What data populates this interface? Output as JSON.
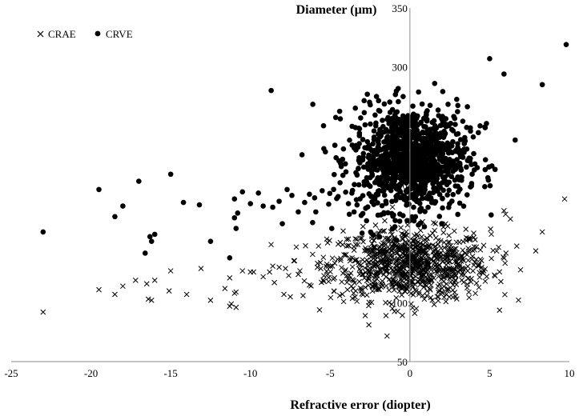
{
  "chart_data": {
    "type": "scatter",
    "title": "",
    "xlabel": "Refractive error (diopter)",
    "ylabel": "Diameter (µm)",
    "xlim": [
      -25,
      10
    ],
    "ylim": [
      50,
      350
    ],
    "xticks": [
      -25,
      -20,
      -15,
      -10,
      -5,
      0,
      5,
      10
    ],
    "yticks": [
      50,
      100,
      150,
      200,
      250,
      300,
      350
    ],
    "grid": false,
    "legend_position": "top-left",
    "series": [
      {
        "name": "CRAE",
        "marker": "x",
        "color": "#000000",
        "x": [
          -23,
          -19.5,
          -18.5,
          -18,
          -17.2,
          -16.5,
          -16.4,
          -16.2,
          -16,
          -15.1,
          -15,
          -14,
          -13.1,
          -12.5,
          -11.6,
          -11.3,
          -11.3,
          -11.2,
          -11,
          -10.9,
          -10.9,
          -10.5,
          -10,
          -9.8,
          -9.2,
          -8.8,
          -8.6,
          -8.5,
          -8.2,
          -7.9,
          -7.8,
          -7.6,
          -7.5,
          -7,
          -6.9,
          -6.7,
          -6.3,
          -6.1,
          -5.8,
          -5.4,
          -5.1,
          -4.8,
          -4.4,
          -4.2,
          -3.8,
          -3.4,
          -3.1,
          -2.8,
          -2.6,
          -2.2,
          -2.1,
          -1.5,
          -1.3,
          -1.1,
          -0.8,
          0.3,
          0.4,
          1.4,
          2.6,
          3.5,
          3.9,
          4.5,
          5.9,
          6,
          6.3,
          6.7,
          8.3,
          9.7
        ],
        "y": [
          92,
          111,
          107,
          114,
          119,
          116,
          103,
          102,
          119,
          110,
          127,
          107,
          129,
          102,
          112,
          121,
          97,
          99,
          108,
          109,
          96,
          127,
          126,
          126,
          122,
          126,
          131,
          117,
          130,
          107,
          129,
          123,
          105,
          124,
          127,
          106,
          115,
          141,
          130,
          118,
          118,
          120,
          106,
          125,
          123,
          110,
          127,
          89,
          121,
          123,
          123,
          89,
          100,
          95,
          135,
          91,
          95,
          102,
          146,
          129,
          137,
          130,
          178,
          175,
          171,
          148,
          160,
          188
        ],
        "cloud": {
          "cx": 0,
          "cy": 132,
          "sx": 2.5,
          "sy": 15,
          "n": 900
        }
      },
      {
        "name": "CRVE",
        "marker": "dot",
        "color": "#000000",
        "x": [
          -23,
          -19.5,
          -18.5,
          -18,
          -17,
          -16.6,
          -16.3,
          -16.2,
          -16,
          -15,
          -14.2,
          -13.2,
          -12.5,
          -11.3,
          -11,
          -11,
          -10.9,
          -10.8,
          -10.5,
          -10,
          -9.5,
          -9.2,
          -8.7,
          -8.6,
          -8.2,
          -8,
          -7.7,
          -7.4,
          -7,
          -6.6,
          -6.3,
          -6.1,
          -5.9,
          -5.5,
          -5.3,
          -4.9,
          -4.5,
          -4.2,
          -3.8,
          -3.5,
          -3.2,
          -3,
          -2.6,
          -2.2,
          4.4,
          4.7,
          4.8,
          5,
          5.9,
          6.6,
          8.3,
          9.8
        ],
        "y": [
          160,
          196,
          173,
          182,
          203,
          142,
          156,
          152,
          158,
          209,
          185,
          183,
          152,
          138,
          188,
          172,
          163,
          176,
          194,
          184,
          193,
          182,
          280,
          181,
          186,
          167,
          196,
          191,
          177,
          185,
          192,
          168,
          177,
          195,
          228,
          163,
          190,
          208,
          175,
          177,
          200,
          159,
          200,
          188,
          250,
          249,
          252,
          307,
          294,
          238,
          285,
          319
        ],
        "cloud": {
          "cx": 0,
          "cy": 222,
          "sx": 1.8,
          "sy": 22,
          "n": 1100
        }
      }
    ]
  }
}
